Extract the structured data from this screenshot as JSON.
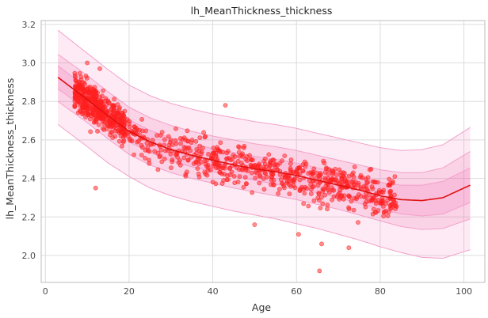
{
  "chart_data": {
    "type": "scatter",
    "title": "lh_MeanThickness_thickness",
    "xlabel": "Age",
    "ylabel": "lh_MeanThickness_thickness",
    "xlim": [
      -1,
      105
    ],
    "ylim": [
      1.86,
      3.22
    ],
    "xticks": [
      0,
      20,
      40,
      60,
      80,
      100
    ],
    "yticks": [
      2.0,
      2.2,
      2.4,
      2.6,
      2.8,
      3.0,
      3.2
    ],
    "grid": true,
    "colors": {
      "points": "#ff2020",
      "median": "#e01010",
      "band": "#f060a8",
      "grid": "#dddddd",
      "axis": "#bdbdbd"
    },
    "centile_curve": {
      "x": [
        3,
        10,
        15,
        20,
        25,
        30,
        35,
        40,
        45,
        50,
        55,
        60,
        65,
        70,
        75,
        80,
        85,
        90,
        95,
        101.5
      ],
      "median": [
        2.925,
        2.81,
        2.725,
        2.645,
        2.59,
        2.55,
        2.52,
        2.495,
        2.47,
        2.45,
        2.435,
        2.415,
        2.39,
        2.365,
        2.34,
        2.31,
        2.29,
        2.285,
        2.3,
        2.365
      ],
      "lower_outer": [
        2.68,
        2.565,
        2.48,
        2.41,
        2.35,
        2.31,
        2.28,
        2.255,
        2.23,
        2.21,
        2.19,
        2.165,
        2.14,
        2.11,
        2.08,
        2.045,
        2.015,
        1.99,
        1.985,
        2.03
      ],
      "lower_mid": [
        2.8,
        2.69,
        2.605,
        2.525,
        2.47,
        2.43,
        2.4,
        2.375,
        2.35,
        2.33,
        2.31,
        2.29,
        2.265,
        2.24,
        2.21,
        2.18,
        2.15,
        2.135,
        2.14,
        2.19
      ],
      "lower_inner": [
        2.865,
        2.755,
        2.67,
        2.59,
        2.535,
        2.49,
        2.46,
        2.435,
        2.41,
        2.39,
        2.37,
        2.35,
        2.325,
        2.3,
        2.27,
        2.24,
        2.215,
        2.205,
        2.215,
        2.275
      ],
      "upper_inner": [
        2.985,
        2.87,
        2.785,
        2.705,
        2.65,
        2.61,
        2.58,
        2.555,
        2.535,
        2.515,
        2.5,
        2.48,
        2.455,
        2.43,
        2.405,
        2.38,
        2.365,
        2.365,
        2.385,
        2.455
      ],
      "upper_mid": [
        3.045,
        2.935,
        2.85,
        2.77,
        2.715,
        2.675,
        2.645,
        2.62,
        2.6,
        2.58,
        2.565,
        2.545,
        2.52,
        2.495,
        2.47,
        2.445,
        2.43,
        2.43,
        2.455,
        2.54
      ],
      "upper_outer": [
        3.17,
        3.05,
        2.965,
        2.885,
        2.83,
        2.79,
        2.76,
        2.735,
        2.715,
        2.695,
        2.68,
        2.66,
        2.635,
        2.61,
        2.585,
        2.56,
        2.545,
        2.55,
        2.575,
        2.665
      ]
    },
    "point_groups": [
      {
        "x_min": 7,
        "x_max": 14,
        "n": 300,
        "spread": 0.085
      },
      {
        "x_min": 14,
        "x_max": 19,
        "n": 150,
        "spread": 0.08
      },
      {
        "x_min": 19,
        "x_max": 40,
        "n": 160,
        "spread": 0.085
      },
      {
        "x_min": 40,
        "x_max": 60,
        "n": 200,
        "spread": 0.09
      },
      {
        "x_min": 60,
        "x_max": 84,
        "n": 270,
        "spread": 0.09
      }
    ],
    "noted_points": [
      {
        "x": 65.5,
        "y": 1.92
      },
      {
        "x": 72.5,
        "y": 2.04
      },
      {
        "x": 50,
        "y": 2.16
      },
      {
        "x": 60.5,
        "y": 2.11
      },
      {
        "x": 66,
        "y": 2.06
      },
      {
        "x": 12,
        "y": 2.35
      },
      {
        "x": 43,
        "y": 2.78
      },
      {
        "x": 10,
        "y": 3.0
      },
      {
        "x": 13,
        "y": 2.97
      },
      {
        "x": 83.5,
        "y": 2.41
      },
      {
        "x": 79,
        "y": 2.27
      }
    ]
  }
}
